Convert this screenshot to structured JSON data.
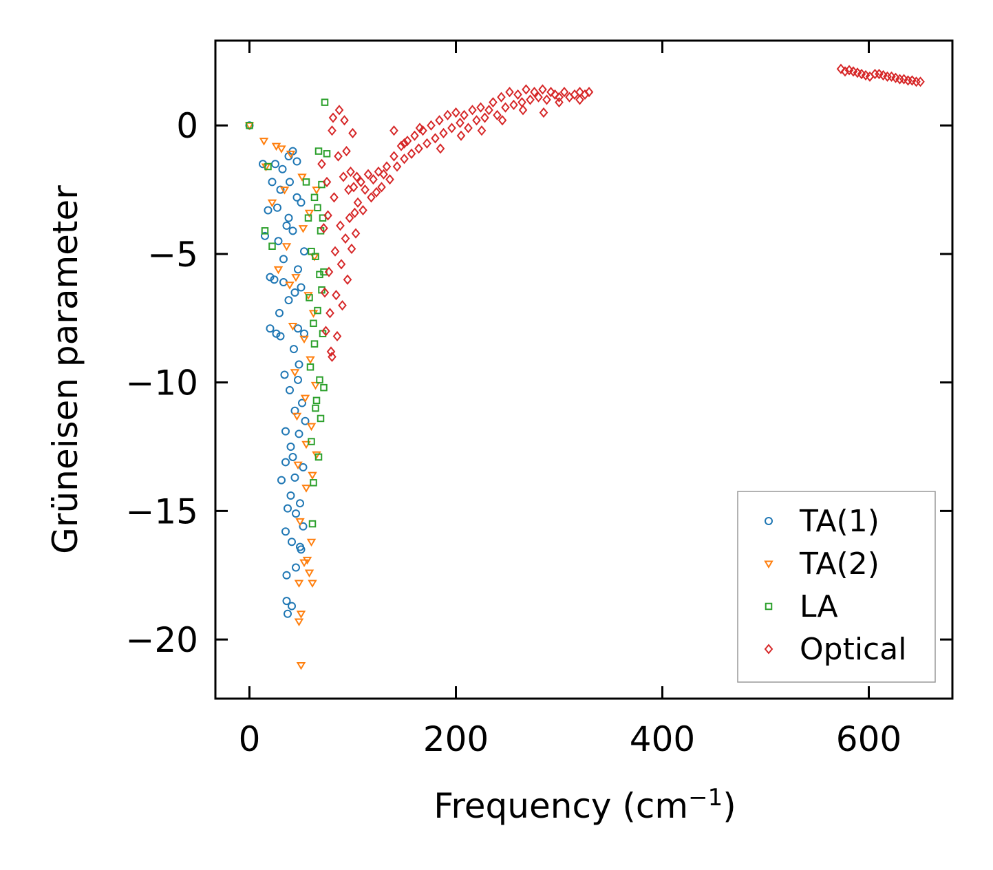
{
  "chart_data": {
    "type": "scatter",
    "xlabel": "Frequency (cm",
    "xlabel_superscript": "−1",
    "xlabel_suffix": ")",
    "ylabel": "Grüneisen parameter",
    "xlim": [
      -33,
      681
    ],
    "ylim": [
      -22.3,
      3.3
    ],
    "x_ticks": [
      0,
      200,
      400,
      600
    ],
    "x_tick_labels": [
      "0",
      "200",
      "400",
      "600"
    ],
    "y_ticks": [
      0,
      -5,
      -10,
      -15,
      -20
    ],
    "y_tick_labels": [
      "0",
      "−5",
      "−10",
      "−15",
      "−20"
    ],
    "grid": false,
    "legend_position": "lower-right",
    "colors": {
      "TA(1)": "#1f77b4",
      "TA(2)": "#ff7f0e",
      "LA": "#2ca02c",
      "Optical": "#d62728"
    },
    "series": [
      {
        "name": "TA(1)",
        "marker": "circle",
        "points": [
          [
            0,
            0
          ],
          [
            13,
            -1.5
          ],
          [
            15,
            -4.3
          ],
          [
            18,
            -3.3
          ],
          [
            20,
            -5.9
          ],
          [
            22,
            -2.2
          ],
          [
            24,
            -6.0
          ],
          [
            25,
            -1.5
          ],
          [
            27,
            -3.2
          ],
          [
            28,
            -4.5
          ],
          [
            29,
            -7.3
          ],
          [
            30,
            -2.5
          ],
          [
            30,
            -8.2
          ],
          [
            32,
            -1.7
          ],
          [
            33,
            -5.2
          ],
          [
            34,
            -9.7
          ],
          [
            35,
            -11.9
          ],
          [
            35,
            -13.1
          ],
          [
            35,
            -15.8
          ],
          [
            36,
            -17.5
          ],
          [
            36,
            -18.5
          ],
          [
            37,
            -19.0
          ],
          [
            38,
            -1.2
          ],
          [
            38,
            -3.6
          ],
          [
            38,
            -6.8
          ],
          [
            39,
            -10.3
          ],
          [
            40,
            -12.5
          ],
          [
            40,
            -14.4
          ],
          [
            41,
            -16.2
          ],
          [
            41,
            -18.7
          ],
          [
            42,
            -1.0
          ],
          [
            42,
            -4.1
          ],
          [
            43,
            -8.7
          ],
          [
            44,
            -11.1
          ],
          [
            44,
            -13.7
          ],
          [
            45,
            -15.1
          ],
          [
            45,
            -17.2
          ],
          [
            46,
            -1.4
          ],
          [
            46,
            -2.8
          ],
          [
            47,
            -5.6
          ],
          [
            47,
            -7.9
          ],
          [
            48,
            -9.3
          ],
          [
            48,
            -12.0
          ],
          [
            49,
            -14.7
          ],
          [
            49,
            -16.4
          ],
          [
            50,
            -3.0
          ],
          [
            50,
            -6.3
          ],
          [
            51,
            -10.8
          ],
          [
            52,
            -13.3
          ],
          [
            52,
            -15.6
          ],
          [
            53,
            -4.9
          ],
          [
            53,
            -8.1
          ],
          [
            54,
            -11.5
          ],
          [
            20,
            -7.9
          ],
          [
            26,
            -8.1
          ],
          [
            31,
            -13.8
          ],
          [
            44,
            -6.5
          ],
          [
            39,
            -2.2
          ],
          [
            36,
            -3.9
          ],
          [
            47,
            -9.9
          ],
          [
            42,
            -12.9
          ],
          [
            37,
            -14.9
          ],
          [
            50,
            -16.5
          ],
          [
            33,
            -6.1
          ]
        ]
      },
      {
        "name": "TA(2)",
        "marker": "triangle-down",
        "points": [
          [
            0,
            0
          ],
          [
            14,
            -0.6
          ],
          [
            16,
            -1.6
          ],
          [
            22,
            -3.0
          ],
          [
            26,
            -0.8
          ],
          [
            28,
            -5.6
          ],
          [
            31,
            -0.9
          ],
          [
            34,
            -2.5
          ],
          [
            36,
            -4.7
          ],
          [
            39,
            -6.2
          ],
          [
            40,
            -1.1
          ],
          [
            42,
            -7.8
          ],
          [
            44,
            -9.6
          ],
          [
            46,
            -11.3
          ],
          [
            47,
            -13.2
          ],
          [
            48,
            -17.8
          ],
          [
            48,
            -19.3
          ],
          [
            49,
            -15.4
          ],
          [
            50,
            -19.0
          ],
          [
            50,
            -21.0
          ],
          [
            51,
            -2.0
          ],
          [
            52,
            -4.0
          ],
          [
            53,
            -8.3
          ],
          [
            54,
            -10.6
          ],
          [
            55,
            -12.4
          ],
          [
            55,
            -14.1
          ],
          [
            56,
            -16.9
          ],
          [
            57,
            -6.6
          ],
          [
            58,
            -3.4
          ],
          [
            59,
            -9.1
          ],
          [
            60,
            -11.7
          ],
          [
            60,
            -16.2
          ],
          [
            61,
            -13.6
          ],
          [
            61,
            -17.8
          ],
          [
            62,
            -7.3
          ],
          [
            63,
            -5.1
          ],
          [
            64,
            -10.1
          ],
          [
            65,
            -2.5
          ],
          [
            65,
            -12.8
          ],
          [
            53,
            -17.0
          ],
          [
            58,
            -17.4
          ],
          [
            45,
            -5.9
          ]
        ]
      },
      {
        "name": "LA",
        "marker": "square",
        "points": [
          [
            0,
            0
          ],
          [
            15,
            -4.1
          ],
          [
            18,
            -1.6
          ],
          [
            22,
            -4.7
          ],
          [
            55,
            -2.2
          ],
          [
            57,
            -3.6
          ],
          [
            58,
            -6.7
          ],
          [
            59,
            -9.4
          ],
          [
            60,
            -12.3
          ],
          [
            61,
            -15.5
          ],
          [
            62,
            -13.9
          ],
          [
            63,
            -2.8
          ],
          [
            63,
            -8.5
          ],
          [
            64,
            -5.1
          ],
          [
            65,
            -10.7
          ],
          [
            66,
            -3.2
          ],
          [
            66,
            -7.2
          ],
          [
            67,
            -12.9
          ],
          [
            67,
            -1.0
          ],
          [
            68,
            -9.9
          ],
          [
            68,
            -5.8
          ],
          [
            69,
            -4.1
          ],
          [
            69,
            -11.4
          ],
          [
            70,
            -6.4
          ],
          [
            70,
            -2.3
          ],
          [
            71,
            -3.6
          ],
          [
            71,
            -8.1
          ],
          [
            72,
            -5.7
          ],
          [
            72,
            -10.2
          ],
          [
            73,
            0.9
          ],
          [
            75,
            -1.1
          ],
          [
            60,
            -4.9
          ],
          [
            62,
            -7.7
          ],
          [
            64,
            -11.0
          ]
        ]
      },
      {
        "name": "Optical",
        "marker": "diamond",
        "points": [
          [
            70,
            -1.5
          ],
          [
            72,
            -4.0
          ],
          [
            73,
            -6.5
          ],
          [
            74,
            -8.0
          ],
          [
            75,
            -2.2
          ],
          [
            76,
            -3.5
          ],
          [
            77,
            -5.7
          ],
          [
            78,
            -7.3
          ],
          [
            79,
            -8.8
          ],
          [
            80,
            -9.0
          ],
          [
            80,
            -0.2
          ],
          [
            81,
            0.3
          ],
          [
            82,
            -2.8
          ],
          [
            83,
            -4.9
          ],
          [
            84,
            -6.6
          ],
          [
            85,
            -8.2
          ],
          [
            86,
            -1.2
          ],
          [
            87,
            0.6
          ],
          [
            88,
            -3.9
          ],
          [
            89,
            -5.4
          ],
          [
            90,
            -7.0
          ],
          [
            91,
            -2.0
          ],
          [
            92,
            0.2
          ],
          [
            93,
            -4.4
          ],
          [
            94,
            -1.0
          ],
          [
            95,
            -6.0
          ],
          [
            96,
            -2.5
          ],
          [
            97,
            -3.6
          ],
          [
            98,
            -1.8
          ],
          [
            99,
            -4.8
          ],
          [
            100,
            -0.3
          ],
          [
            101,
            -2.4
          ],
          [
            102,
            -3.4
          ],
          [
            103,
            -4.2
          ],
          [
            104,
            -2.0
          ],
          [
            105,
            -3.0
          ],
          [
            108,
            -2.2
          ],
          [
            110,
            -3.3
          ],
          [
            112,
            -2.5
          ],
          [
            115,
            -1.9
          ],
          [
            118,
            -2.8
          ],
          [
            120,
            -2.1
          ],
          [
            123,
            -2.6
          ],
          [
            125,
            -1.8
          ],
          [
            128,
            -2.4
          ],
          [
            130,
            -1.9
          ],
          [
            133,
            -1.6
          ],
          [
            136,
            -2.1
          ],
          [
            140,
            -1.2
          ],
          [
            143,
            -1.6
          ],
          [
            147,
            -0.8
          ],
          [
            150,
            -1.3
          ],
          [
            153,
            -0.6
          ],
          [
            157,
            -1.1
          ],
          [
            160,
            -0.4
          ],
          [
            164,
            -0.9
          ],
          [
            168,
            -0.2
          ],
          [
            172,
            -0.7
          ],
          [
            176,
            0.0
          ],
          [
            180,
            -0.5
          ],
          [
            184,
            0.2
          ],
          [
            188,
            -0.3
          ],
          [
            192,
            0.4
          ],
          [
            196,
            -0.1
          ],
          [
            200,
            0.5
          ],
          [
            204,
            0.1
          ],
          [
            208,
            0.4
          ],
          [
            212,
            -0.1
          ],
          [
            216,
            0.6
          ],
          [
            220,
            0.2
          ],
          [
            224,
            0.7
          ],
          [
            228,
            0.3
          ],
          [
            232,
            0.6
          ],
          [
            236,
            0.9
          ],
          [
            240,
            0.4
          ],
          [
            244,
            1.1
          ],
          [
            248,
            0.7
          ],
          [
            252,
            1.3
          ],
          [
            256,
            0.8
          ],
          [
            260,
            1.2
          ],
          [
            264,
            0.9
          ],
          [
            268,
            1.4
          ],
          [
            272,
            1.0
          ],
          [
            276,
            1.3
          ],
          [
            280,
            1.1
          ],
          [
            284,
            1.4
          ],
          [
            288,
            1.0
          ],
          [
            292,
            1.3
          ],
          [
            296,
            1.2
          ],
          [
            300,
            1.1
          ],
          [
            305,
            1.3
          ],
          [
            310,
            1.1
          ],
          [
            315,
            1.2
          ],
          [
            320,
            1.3
          ],
          [
            325,
            1.2
          ],
          [
            329,
            1.3
          ],
          [
            140,
            -0.2
          ],
          [
            150,
            -0.7
          ],
          [
            165,
            -0.1
          ],
          [
            185,
            -0.9
          ],
          [
            205,
            -0.4
          ],
          [
            225,
            -0.2
          ],
          [
            245,
            0.2
          ],
          [
            265,
            0.6
          ],
          [
            285,
            0.5
          ],
          [
            300,
            0.9
          ],
          [
            320,
            1.0
          ],
          [
            573,
            2.2
          ],
          [
            577,
            2.1
          ],
          [
            581,
            2.15
          ],
          [
            585,
            2.1
          ],
          [
            589,
            2.05
          ],
          [
            593,
            2.0
          ],
          [
            597,
            1.95
          ],
          [
            601,
            1.9
          ],
          [
            606,
            2.0
          ],
          [
            610,
            2.0
          ],
          [
            614,
            1.95
          ],
          [
            618,
            1.9
          ],
          [
            622,
            1.9
          ],
          [
            626,
            1.85
          ],
          [
            630,
            1.8
          ],
          [
            634,
            1.8
          ],
          [
            638,
            1.75
          ],
          [
            642,
            1.75
          ],
          [
            646,
            1.7
          ],
          [
            650,
            1.7
          ]
        ]
      }
    ]
  }
}
